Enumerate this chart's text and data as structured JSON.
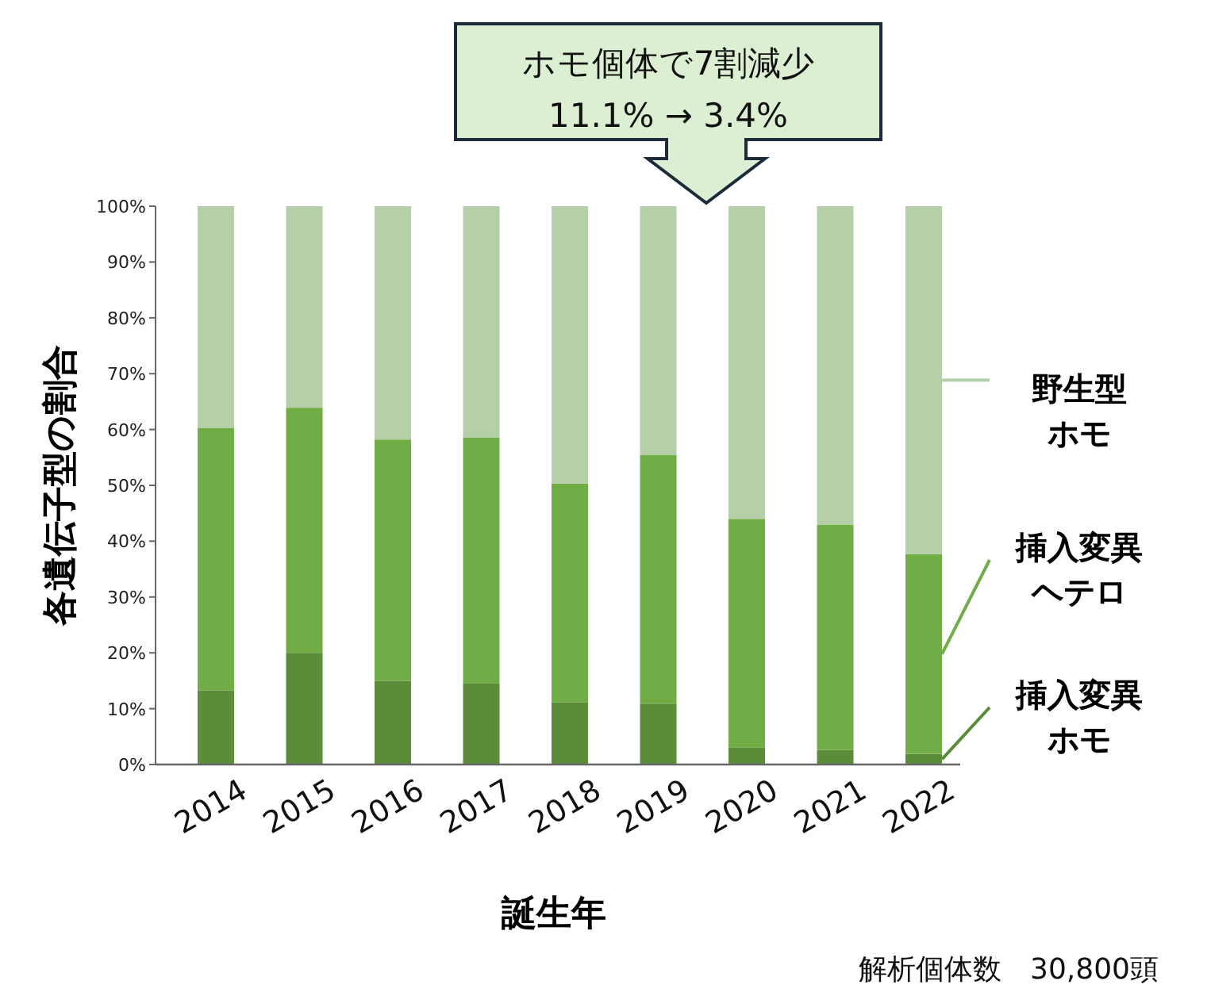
{
  "chart_data": {
    "type": "bar",
    "stacked": true,
    "xlabel": "誕生年",
    "ylabel": "各遺伝子型の割合",
    "categories": [
      "2014",
      "2015",
      "2016",
      "2017",
      "2018",
      "2019",
      "2020",
      "2021",
      "2022"
    ],
    "series": [
      {
        "name": "挿入変異ホモ",
        "color": "#5a8c3a",
        "values": [
          13.3,
          20.0,
          15.0,
          14.5,
          11.1,
          10.9,
          3.0,
          2.6,
          1.9
        ]
      },
      {
        "name": "挿入変異ヘテロ",
        "color": "#70ad47",
        "values": [
          47.0,
          43.9,
          43.2,
          44.1,
          39.2,
          44.5,
          41.0,
          40.3,
          35.8
        ]
      },
      {
        "name": "野生型ホモ",
        "color": "#b5cfa8",
        "values": [
          39.7,
          36.1,
          41.8,
          41.4,
          49.7,
          44.6,
          56.0,
          57.1,
          62.3
        ]
      }
    ],
    "ylim": [
      0,
      100
    ],
    "yticks": [
      {
        "value": 0,
        "label": "0%"
      },
      {
        "value": 10,
        "label": "10%"
      },
      {
        "value": 20,
        "label": "20%"
      },
      {
        "value": 30,
        "label": "30%"
      },
      {
        "value": 40,
        "label": "40%"
      },
      {
        "value": 50,
        "label": "50%"
      },
      {
        "value": 60,
        "label": "60%"
      },
      {
        "value": 70,
        "label": "70%"
      },
      {
        "value": 80,
        "label": "80%"
      },
      {
        "value": 90,
        "label": "90%"
      },
      {
        "value": 100,
        "label": "100%"
      }
    ],
    "legend": "right",
    "annotations": [
      "ホモ個体で7割減少",
      "11.1% → 3.4%",
      "解析個体数　30,800頭"
    ]
  }
}
